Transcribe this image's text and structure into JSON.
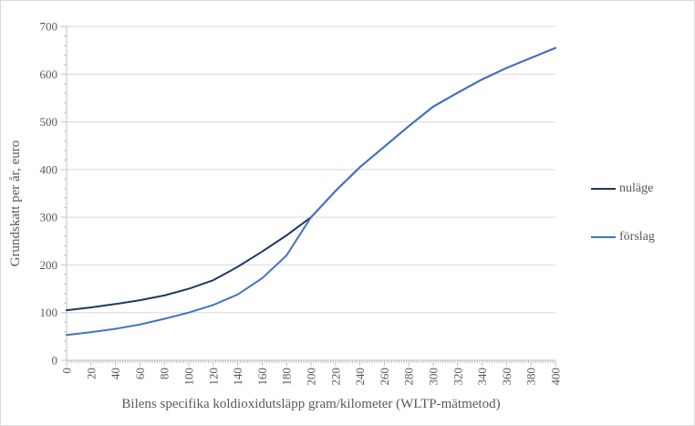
{
  "chart_data": {
    "type": "line",
    "title": "",
    "xlabel": "Bilens specifika koldioxidutsläpp gram/kilometer (WLTP-mätmetod)",
    "ylabel": "Grundskatt per år, euro",
    "xlim": [
      0,
      400
    ],
    "ylim": [
      0,
      700
    ],
    "x_major_ticks": [
      0,
      20,
      40,
      60,
      80,
      100,
      120,
      140,
      160,
      180,
      200,
      220,
      240,
      260,
      280,
      300,
      320,
      340,
      360,
      380,
      400
    ],
    "y_major_ticks": [
      0,
      100,
      200,
      300,
      400,
      500,
      600,
      700
    ],
    "x_minor_unit": 2,
    "y_minor_unit": 20,
    "grid": "horizontal-major-only",
    "legend_position": "right",
    "x_tick_label_rotation": -90,
    "x": [
      0,
      20,
      40,
      60,
      80,
      100,
      120,
      140,
      160,
      180,
      200,
      220,
      240,
      260,
      280,
      300,
      320,
      340,
      360,
      380,
      400
    ],
    "series": [
      {
        "name": "nuläge",
        "color": "#1F3864",
        "values": [
          105,
          111,
          118,
          126,
          136,
          150,
          168,
          196,
          228,
          262,
          300,
          355,
          405,
          448,
          491,
          532,
          561,
          589,
          613,
          634,
          655
        ]
      },
      {
        "name": "förslag",
        "color": "#4472C4",
        "values": [
          53,
          59,
          66,
          75,
          87,
          100,
          116,
          138,
          172,
          220,
          300,
          355,
          405,
          448,
          491,
          532,
          561,
          589,
          613,
          634,
          655
        ]
      }
    ],
    "notes": "Curves overlap from 200 g/km upward; they cross at approximately (200, 300)."
  },
  "colors": {
    "grid": "#D9D9D9",
    "axis": "#BFBFBF",
    "tick_text": "#595959",
    "chart_border": "#D9D9D9",
    "series_nulage": "#1F3864",
    "series_forslag": "#4472C4"
  }
}
